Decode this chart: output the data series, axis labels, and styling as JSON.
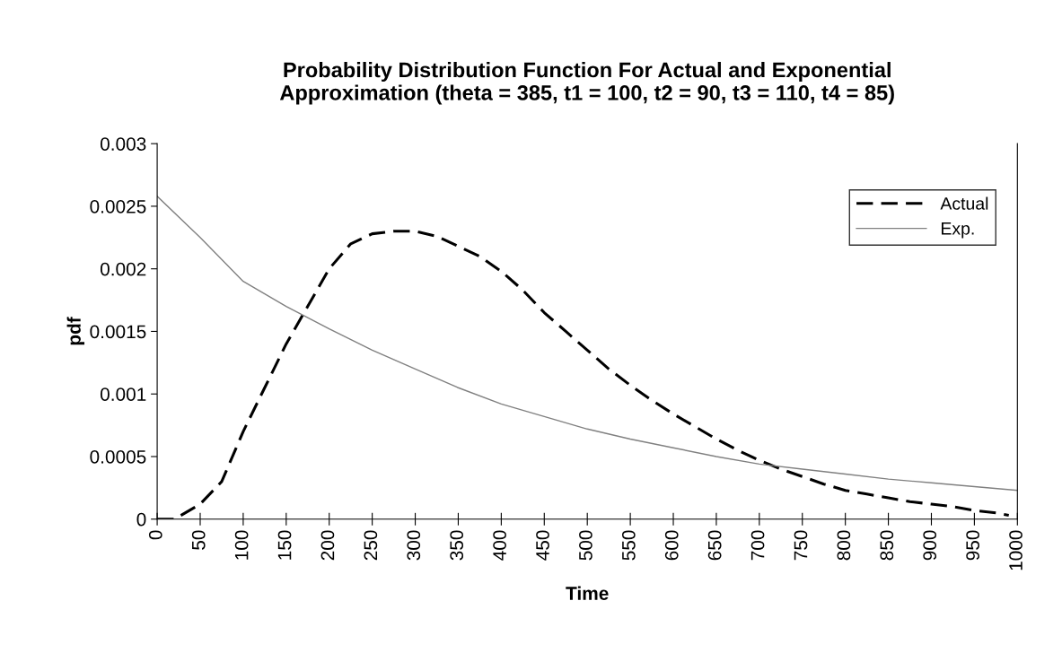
{
  "chart_data": {
    "type": "line",
    "title": "Probability Distribution Function For Actual and Exponential\nApproximation (theta = 385, t1 = 100, t2 = 90, t3 = 110, t4 = 85)",
    "xlabel": "Time",
    "ylabel": "pdf",
    "xlim": [
      0,
      1000
    ],
    "xticks": [
      0,
      50,
      100,
      150,
      200,
      250,
      300,
      350,
      400,
      450,
      500,
      550,
      600,
      650,
      700,
      750,
      800,
      850,
      900,
      950,
      1000
    ],
    "ylim": [
      0,
      0.003
    ],
    "yticks": [
      0,
      0.0005,
      0.001,
      0.0015,
      0.002,
      0.0025,
      0.003
    ],
    "grid": false,
    "legend": "top right",
    "marker": "none",
    "series": [
      {
        "name": "Actual",
        "color": "#000000",
        "line_style": "dashed",
        "x": [
          0,
          20,
          50,
          75,
          100,
          125,
          150,
          175,
          200,
          225,
          250,
          275,
          300,
          325,
          350,
          375,
          400,
          425,
          450,
          475,
          500,
          525,
          550,
          575,
          600,
          625,
          650,
          675,
          700,
          725,
          750,
          775,
          800,
          825,
          850,
          875,
          900,
          925,
          950,
          975,
          990
        ],
        "values": [
          0,
          0,
          0.00012,
          0.0003,
          0.0007,
          0.00105,
          0.0014,
          0.0017,
          0.002,
          0.0022,
          0.00228,
          0.0023,
          0.0023,
          0.00226,
          0.00218,
          0.0021,
          0.00198,
          0.00183,
          0.00165,
          0.0015,
          0.00135,
          0.0012,
          0.00107,
          0.00095,
          0.00084,
          0.00074,
          0.00064,
          0.00055,
          0.00047,
          0.0004,
          0.00034,
          0.00028,
          0.00023,
          0.0002,
          0.00017,
          0.00014,
          0.00012,
          0.0001,
          7e-05,
          5e-05,
          3e-05
        ]
      },
      {
        "name": "Exp.",
        "color": "#808080",
        "line_style": "solid",
        "x": [
          0,
          50,
          100,
          150,
          200,
          250,
          300,
          350,
          400,
          450,
          500,
          550,
          600,
          650,
          700,
          750,
          800,
          850,
          900,
          950,
          1000
        ],
        "values": [
          0.00258,
          0.00225,
          0.0019,
          0.0017,
          0.00152,
          0.00135,
          0.0012,
          0.00105,
          0.00092,
          0.00082,
          0.00072,
          0.00064,
          0.00057,
          0.0005,
          0.00044,
          0.0004,
          0.00036,
          0.00032,
          0.00029,
          0.00026,
          0.00023
        ]
      }
    ]
  }
}
